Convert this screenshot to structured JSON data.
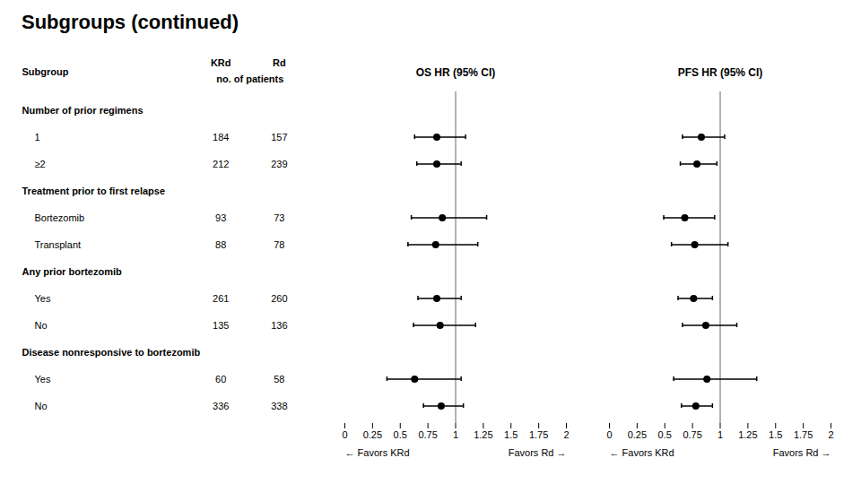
{
  "chart_data": {
    "type": "forest",
    "title": "Subgroups (continued)",
    "label_header": "Subgroup",
    "count_headers": [
      "KRd",
      "Rd"
    ],
    "count_label": "no. of patients",
    "groups": [
      {
        "name": "Number of prior regimens",
        "rows": [
          {
            "label": "1",
            "counts": [
              184,
              157
            ]
          },
          {
            "label": "≥2",
            "counts": [
              212,
              239
            ]
          }
        ]
      },
      {
        "name": "Treatment prior to first relapse",
        "rows": [
          {
            "label": "Bortezomib",
            "counts": [
              93,
              73
            ]
          },
          {
            "label": "Transplant",
            "counts": [
              88,
              78
            ]
          }
        ]
      },
      {
        "name": "Any prior bortezomib",
        "rows": [
          {
            "label": "Yes",
            "counts": [
              261,
              260
            ]
          },
          {
            "label": "No",
            "counts": [
              135,
              136
            ]
          }
        ]
      },
      {
        "name": "Disease nonresponsive to bortezomib",
        "rows": [
          {
            "label": "Yes",
            "counts": [
              60,
              58
            ]
          },
          {
            "label": "No",
            "counts": [
              336,
              338
            ]
          }
        ]
      }
    ],
    "series": [
      {
        "name": "OS HR (95% CI)",
        "values": [
          0.83,
          0.83,
          0.88,
          0.82,
          0.83,
          0.86,
          0.63,
          0.87
        ],
        "lo": [
          0.63,
          0.65,
          0.6,
          0.57,
          0.66,
          0.62,
          0.38,
          0.71
        ],
        "hi": [
          1.09,
          1.05,
          1.28,
          1.2,
          1.05,
          1.18,
          1.05,
          1.07
        ]
      },
      {
        "name": "PFS HR (95% CI)",
        "values": [
          0.83,
          0.79,
          0.68,
          0.77,
          0.76,
          0.87,
          0.88,
          0.78
        ],
        "lo": [
          0.66,
          0.64,
          0.49,
          0.56,
          0.62,
          0.66,
          0.58,
          0.65
        ],
        "hi": [
          1.04,
          0.97,
          0.95,
          1.07,
          0.93,
          1.15,
          1.33,
          0.93
        ]
      }
    ],
    "xlim": [
      0,
      2
    ],
    "xticks": [
      0,
      0.25,
      0.5,
      0.75,
      1,
      1.25,
      1.5,
      1.75,
      2
    ],
    "ref_line": 1,
    "annotations": [
      "← Favors KRd",
      "Favors Rd →"
    ],
    "grid": false
  }
}
